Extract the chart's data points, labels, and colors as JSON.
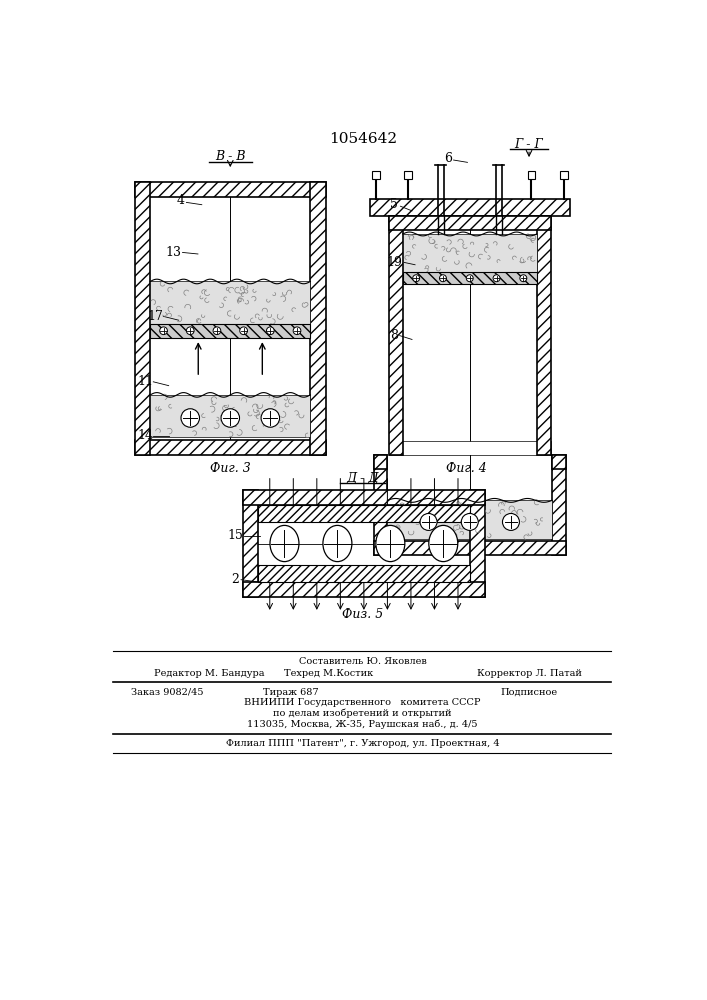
{
  "title": "1054642",
  "bg_color": "#ffffff",
  "line_color": "#000000",
  "fig3_label": "Фиг. 3",
  "fig4_label": "Фиг. 4",
  "fig5_label": "Физ. 5",
  "section_bb": "В - В",
  "section_gg": "Г - Г",
  "section_dd": "Д - Д",
  "footer_sestavitel": "Составитель Ю. Яковлев",
  "footer_redaktor": "Редактор М. Бандура",
  "footer_tehred": "Техред М.Костик",
  "footer_korrektor": "Корректор Л. Патай",
  "footer_zakaz": "Заказ 9082/45",
  "footer_tirazh": "Тираж 687",
  "footer_podpisnoe": "Подписное",
  "footer_vniip1": "ВНИИПИ Государственного   комитета СССР",
  "footer_vniip2": "по делам изобретений и открытий",
  "footer_addr": "113035, Москва, Ж-35, Раушская наб., д. 4/5",
  "footer_filial": "Филиал ППП \"Патент\", г. Ужгород, ул. Проектная, 4"
}
